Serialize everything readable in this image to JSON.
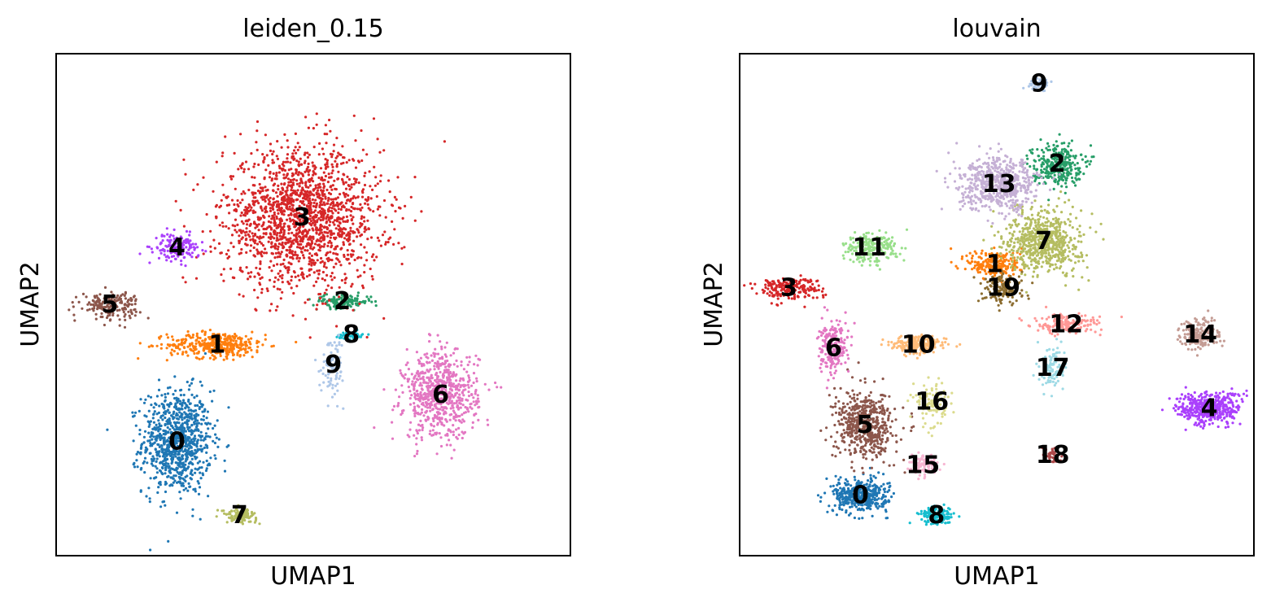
{
  "chart_data": [
    {
      "type": "scatter",
      "title": "leiden_0.15",
      "xlabel": "UMAP1",
      "ylabel": "UMAP2",
      "grid": false,
      "legend": "on data",
      "clusters": [
        {
          "label": "0",
          "color": "#1f77b4",
          "center": [
            2.7,
            3.4
          ]
        },
        {
          "label": "1",
          "color": "#ff7f0e",
          "center": [
            3.6,
            6.3
          ]
        },
        {
          "label": "2",
          "color": "#279e68",
          "center": [
            6.4,
            7.6
          ]
        },
        {
          "label": "3",
          "color": "#d62728",
          "center": [
            5.5,
            10.1
          ]
        },
        {
          "label": "4",
          "color": "#aa40fc",
          "center": [
            2.7,
            9.2
          ]
        },
        {
          "label": "5",
          "color": "#8c564b",
          "center": [
            1.2,
            7.5
          ]
        },
        {
          "label": "6",
          "color": "#e377c2",
          "center": [
            8.6,
            4.8
          ]
        },
        {
          "label": "7",
          "color": "#b5bd61",
          "center": [
            4.1,
            1.2
          ]
        },
        {
          "label": "8",
          "color": "#17becf",
          "center": [
            6.6,
            6.6
          ]
        },
        {
          "label": "9",
          "color": "#aec7e8",
          "center": [
            6.2,
            5.7
          ]
        }
      ]
    },
    {
      "type": "scatter",
      "title": "louvain",
      "xlabel": "UMAP1",
      "ylabel": "UMAP2",
      "grid": false,
      "legend": "on data",
      "clusters": [
        {
          "label": "0",
          "color": "#1f77b4",
          "center": [
            2.7,
            1.8
          ]
        },
        {
          "label": "1",
          "color": "#ff7f0e",
          "center": [
            5.7,
            8.7
          ]
        },
        {
          "label": "2",
          "color": "#279e68",
          "center": [
            7.1,
            11.7
          ]
        },
        {
          "label": "3",
          "color": "#d62728",
          "center": [
            1.1,
            8.0
          ]
        },
        {
          "label": "4",
          "color": "#aa40fc",
          "center": [
            10.5,
            4.4
          ]
        },
        {
          "label": "5",
          "color": "#8c564b",
          "center": [
            2.8,
            3.9
          ]
        },
        {
          "label": "6",
          "color": "#e377c2",
          "center": [
            2.1,
            6.2
          ]
        },
        {
          "label": "7",
          "color": "#b5bd61",
          "center": [
            6.8,
            9.4
          ]
        },
        {
          "label": "8",
          "color": "#17becf",
          "center": [
            4.4,
            1.2
          ]
        },
        {
          "label": "9",
          "color": "#aec7e8",
          "center": [
            6.7,
            14.1
          ]
        },
        {
          "label": "10",
          "color": "#ffbb78",
          "center": [
            4.0,
            6.3
          ]
        },
        {
          "label": "11",
          "color": "#98df8a",
          "center": [
            2.9,
            9.2
          ]
        },
        {
          "label": "12",
          "color": "#ff9896",
          "center": [
            7.3,
            6.9
          ]
        },
        {
          "label": "13",
          "color": "#c5b0d5",
          "center": [
            5.8,
            11.1
          ]
        },
        {
          "label": "14",
          "color": "#c49c94",
          "center": [
            10.3,
            6.6
          ]
        },
        {
          "label": "15",
          "color": "#f7b6d2",
          "center": [
            4.1,
            2.7
          ]
        },
        {
          "label": "16",
          "color": "#dbdb8d",
          "center": [
            4.3,
            4.6
          ]
        },
        {
          "label": "17",
          "color": "#9edae5",
          "center": [
            7.0,
            5.6
          ]
        },
        {
          "label": "18",
          "color": "#ad494a",
          "center": [
            7.0,
            3.0
          ]
        },
        {
          "label": "19",
          "color": "#8c6d31",
          "center": [
            5.9,
            8.0
          ]
        }
      ]
    }
  ]
}
